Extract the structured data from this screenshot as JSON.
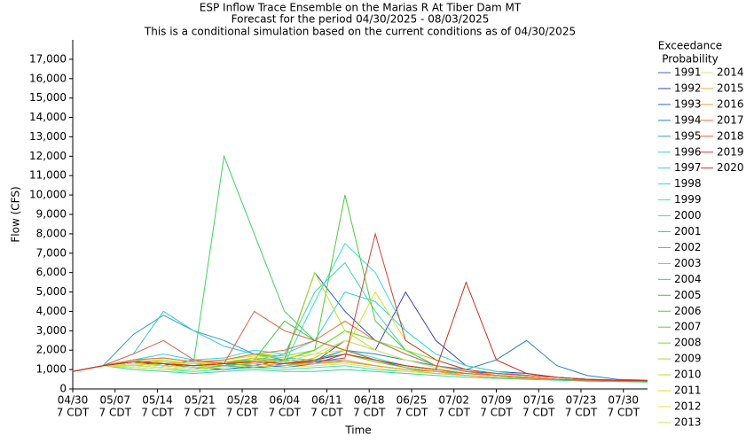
{
  "chart_data": {
    "type": "line",
    "title": "ESP Inflow Trace Ensemble on the Marias R At Tiber Dam MT",
    "subtitle": [
      "Forecast for the period 04/30/2025 - 08/03/2025",
      "This is a conditional simulation based on the current conditions as of 04/30/2025"
    ],
    "x_label": "Time",
    "y_label": "Flow (CFS)",
    "legend_title": [
      "Exceedance",
      "Probability"
    ],
    "x": [
      "04/30",
      "05/05",
      "05/10",
      "05/15",
      "05/20",
      "05/25",
      "05/30",
      "06/04",
      "06/09",
      "06/14",
      "06/19",
      "06/24",
      "06/29",
      "07/04",
      "07/09",
      "07/14",
      "07/19",
      "07/24",
      "07/29",
      "08/03"
    ],
    "xlim": [
      "04/30",
      "08/03"
    ],
    "xticks": [
      "04/30",
      "05/07",
      "05/14",
      "05/21",
      "05/28",
      "06/04",
      "06/11",
      "06/18",
      "06/25",
      "07/02",
      "07/09",
      "07/16",
      "07/23",
      "07/30"
    ],
    "xtick_suffix": "7 CDT",
    "ylim": [
      0,
      18000
    ],
    "yticks": [
      0,
      {
        "value": 1000,
        "label": "1,000"
      },
      {
        "value": 2000,
        "label": "2,000"
      },
      {
        "value": 3000,
        "label": "3,000"
      },
      {
        "value": 4000,
        "label": "4,000"
      },
      {
        "value": 5000,
        "label": "5,000"
      },
      {
        "value": 6000,
        "label": "6,000"
      },
      {
        "value": 7000,
        "label": "7,000"
      },
      {
        "value": 8000,
        "label": "8,000"
      },
      {
        "value": 9000,
        "label": "9,000"
      },
      {
        "value": 10000,
        "label": "10,000"
      },
      {
        "value": 11000,
        "label": "11,000"
      },
      {
        "value": 12000,
        "label": "12,000"
      },
      {
        "value": 13000,
        "label": "13,000"
      },
      {
        "value": 14000,
        "label": "14,000"
      },
      {
        "value": 15000,
        "label": "15,000"
      },
      {
        "value": 16000,
        "label": "16,000"
      },
      {
        "value": 17000,
        "label": "17,000"
      }
    ],
    "grid": false,
    "series": [
      {
        "name": "1991",
        "color": "#4b5fc8",
        "values": [
          900,
          1200,
          1500,
          1300,
          1100,
          1000,
          1200,
          1100,
          1300,
          1800,
          1500,
          1100,
          900,
          800,
          700,
          600,
          500,
          450,
          400,
          380
        ]
      },
      {
        "name": "1992",
        "color": "#3a44b8",
        "values": [
          900,
          1200,
          1300,
          1200,
          1100,
          1000,
          1100,
          1200,
          1400,
          2500,
          2000,
          5000,
          2500,
          1200,
          900,
          800,
          600,
          500,
          420,
          380
        ]
      },
      {
        "name": "1993",
        "color": "#3060c8",
        "values": [
          900,
          1200,
          1400,
          1200,
          1500,
          1300,
          1200,
          1500,
          6000,
          4000,
          2500,
          1800,
          1200,
          900,
          800,
          700,
          600,
          500,
          450,
          400
        ]
      },
      {
        "name": "1994",
        "color": "#2a80c8",
        "values": [
          900,
          1200,
          1300,
          1200,
          1100,
          1200,
          1100,
          1300,
          1500,
          2000,
          1800,
          1500,
          1200,
          1000,
          1500,
          2500,
          1200,
          700,
          500,
          450
        ]
      },
      {
        "name": "1995",
        "color": "#30a0d0",
        "values": [
          900,
          1200,
          2800,
          3800,
          3000,
          2500,
          1800,
          1500,
          1400,
          1500,
          1200,
          1000,
          900,
          800,
          700,
          600,
          500,
          450,
          400,
          380
        ]
      },
      {
        "name": "1996",
        "color": "#40c0d8",
        "values": [
          900,
          1200,
          1800,
          4000,
          3000,
          2200,
          1800,
          1600,
          1500,
          1400,
          1200,
          1000,
          900,
          800,
          700,
          600,
          500,
          450,
          420,
          400
        ]
      },
      {
        "name": "1997",
        "color": "#30d0e0",
        "values": [
          900,
          1200,
          1500,
          1800,
          1500,
          1600,
          2000,
          1800,
          2500,
          5000,
          4500,
          3000,
          1800,
          1200,
          900,
          700,
          600,
          500,
          450,
          400
        ]
      },
      {
        "name": "1998",
        "color": "#30e0d0",
        "values": [
          900,
          1200,
          1300,
          1400,
          1200,
          1400,
          1500,
          1300,
          4500,
          7500,
          6000,
          3000,
          1800,
          1200,
          900,
          700,
          600,
          500,
          450,
          400
        ]
      },
      {
        "name": "1999",
        "color": "#40e8c0",
        "values": [
          900,
          1200,
          1200,
          1100,
          1000,
          1200,
          1300,
          1200,
          1400,
          2000,
          1600,
          1200,
          1000,
          800,
          700,
          600,
          500,
          450,
          420,
          400
        ]
      },
      {
        "name": "2000",
        "color": "#40e0b0",
        "values": [
          900,
          1200,
          1100,
          1000,
          900,
          1000,
          1100,
          1000,
          1100,
          1200,
          1000,
          900,
          800,
          700,
          600,
          550,
          500,
          450,
          420,
          400
        ]
      },
      {
        "name": "2001",
        "color": "#30d890",
        "values": [
          900,
          1200,
          1000,
          900,
          800,
          900,
          1000,
          900,
          900,
          1000,
          900,
          800,
          700,
          600,
          550,
          500,
          450,
          400,
          380,
          350
        ]
      },
      {
        "name": "2002",
        "color": "#30d080",
        "values": [
          900,
          1200,
          1300,
          1200,
          1100,
          1300,
          1600,
          1500,
          2000,
          3000,
          2500,
          1800,
          1200,
          900,
          700,
          600,
          500,
          450,
          420,
          400
        ]
      },
      {
        "name": "2003",
        "color": "#40d8a0",
        "values": [
          900,
          1200,
          1400,
          1500,
          1300,
          1200,
          1500,
          1800,
          5000,
          6500,
          4000,
          2000,
          1200,
          900,
          700,
          600,
          500,
          450,
          420,
          400
        ]
      },
      {
        "name": "2004",
        "color": "#40d060",
        "values": [
          900,
          1200,
          1500,
          1600,
          1400,
          12000,
          8000,
          4000,
          2500,
          2000,
          1500,
          1200,
          1000,
          800,
          700,
          600,
          500,
          450,
          420,
          400
        ]
      },
      {
        "name": "2005",
        "color": "#40c840",
        "values": [
          900,
          1200,
          1300,
          1200,
          1100,
          1200,
          1500,
          3500,
          2500,
          2000,
          1500,
          1200,
          1000,
          800,
          700,
          600,
          500,
          450,
          420,
          400
        ]
      },
      {
        "name": "2006",
        "color": "#50c840",
        "values": [
          900,
          1200,
          1400,
          1300,
          1200,
          1400,
          1500,
          1500,
          2000,
          10000,
          3500,
          2000,
          1200,
          900,
          700,
          600,
          500,
          450,
          420,
          400
        ]
      },
      {
        "name": "2007",
        "color": "#60d030",
        "values": [
          900,
          1200,
          1200,
          1100,
          1000,
          1200,
          1300,
          1200,
          1500,
          1800,
          1400,
          1100,
          900,
          700,
          600,
          550,
          500,
          450,
          420,
          400
        ]
      },
      {
        "name": "2008",
        "color": "#80d820",
        "values": [
          900,
          1200,
          1300,
          1400,
          1300,
          1500,
          1800,
          1700,
          2000,
          3000,
          2500,
          2000,
          1500,
          1000,
          800,
          700,
          600,
          500,
          450,
          420
        ]
      },
      {
        "name": "2009",
        "color": "#a0e020",
        "values": [
          900,
          1200,
          1200,
          1300,
          1200,
          1300,
          1400,
          1300,
          1600,
          2500,
          2000,
          1500,
          1100,
          800,
          700,
          600,
          500,
          450,
          420,
          400
        ]
      },
      {
        "name": "2010",
        "color": "#c0e020",
        "values": [
          900,
          1200,
          1400,
          1500,
          1300,
          1400,
          1600,
          1400,
          6000,
          3000,
          2000,
          1500,
          1100,
          800,
          700,
          600,
          500,
          450,
          420,
          400
        ]
      },
      {
        "name": "2011",
        "color": "#d8e020",
        "values": [
          900,
          1200,
          1300,
          1400,
          1300,
          1500,
          1700,
          1600,
          1800,
          2000,
          5000,
          2500,
          1500,
          1000,
          800,
          700,
          600,
          500,
          450,
          420
        ]
      },
      {
        "name": "2012",
        "color": "#e8e040",
        "values": [
          900,
          1200,
          1300,
          1200,
          1100,
          1300,
          1400,
          1300,
          1500,
          1800,
          1500,
          1200,
          1000,
          800,
          700,
          600,
          500,
          450,
          420,
          400
        ]
      },
      {
        "name": "2013",
        "color": "#e0e060",
        "values": [
          900,
          1200,
          1100,
          1000,
          1000,
          1100,
          1200,
          1100,
          1200,
          1300,
          1100,
          900,
          800,
          700,
          600,
          550,
          500,
          450,
          420,
          400
        ]
      },
      {
        "name": "2014",
        "color": "#d8e080",
        "values": [
          900,
          1200,
          1200,
          1100,
          1000,
          1300,
          1500,
          1400,
          1800,
          2500,
          2000,
          1500,
          1100,
          800,
          700,
          600,
          500,
          450,
          420,
          400
        ]
      },
      {
        "name": "2015",
        "color": "#f0b040",
        "values": [
          900,
          1200,
          1500,
          1400,
          1200,
          1400,
          1300,
          1200,
          1300,
          1500,
          1200,
          1000,
          800,
          700,
          600,
          550,
          500,
          450,
          420,
          400
        ]
      },
      {
        "name": "2016",
        "color": "#f0a030",
        "values": [
          900,
          1200,
          1400,
          1300,
          1200,
          1300,
          1500,
          1400,
          1300,
          1400,
          1200,
          1000,
          900,
          700,
          600,
          550,
          500,
          450,
          420,
          400
        ]
      },
      {
        "name": "2017",
        "color": "#e87040",
        "values": [
          900,
          1200,
          1500,
          1600,
          1400,
          1500,
          1800,
          2000,
          2500,
          3500,
          2500,
          1800,
          1200,
          900,
          700,
          600,
          500,
          450,
          420,
          400
        ]
      },
      {
        "name": "2018",
        "color": "#e06040",
        "values": [
          900,
          1200,
          1800,
          2500,
          1500,
          1300,
          4000,
          3000,
          2500,
          2000,
          1500,
          1200,
          1000,
          800,
          700,
          600,
          500,
          450,
          420,
          400
        ]
      },
      {
        "name": "2019",
        "color": "#d04030",
        "values": [
          900,
          1200,
          1400,
          1300,
          1200,
          1300,
          1400,
          1300,
          1400,
          1600,
          8000,
          2500,
          1500,
          1000,
          800,
          700,
          600,
          500,
          450,
          420
        ]
      },
      {
        "name": "2020",
        "color": "#c83020",
        "values": [
          900,
          1200,
          1400,
          1300,
          1200,
          1300,
          1400,
          1300,
          1500,
          1800,
          1500,
          1200,
          1000,
          5500,
          1500,
          800,
          600,
          500,
          450,
          420
        ]
      }
    ]
  }
}
